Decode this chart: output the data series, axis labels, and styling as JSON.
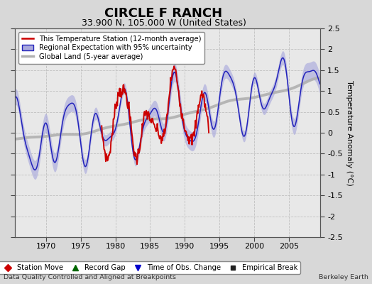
{
  "title": "CIRCLE F RANCH",
  "subtitle": "33.900 N, 105.000 W (United States)",
  "ylabel": "Temperature Anomaly (°C)",
  "xlabel_bottom_left": "Data Quality Controlled and Aligned at Breakpoints",
  "xlabel_bottom_right": "Berkeley Earth",
  "ylim": [
    -2.5,
    2.5
  ],
  "xlim": [
    1965.5,
    2009.5
  ],
  "xticks": [
    1970,
    1975,
    1980,
    1985,
    1990,
    1995,
    2000,
    2005
  ],
  "yticks": [
    -2.5,
    -2,
    -1.5,
    -1,
    -0.5,
    0,
    0.5,
    1,
    1.5,
    2,
    2.5
  ],
  "bg_color": "#d8d8d8",
  "plot_bg_color": "#e8e8e8",
  "legend_line1": "This Temperature Station (12-month average)",
  "legend_line2": "Regional Expectation with 95% uncertainty",
  "legend_line3": "Global Land (5-year average)",
  "legend_marker1": "Station Move",
  "legend_marker2": "Record Gap",
  "legend_marker3": "Time of Obs. Change",
  "legend_marker4": "Empirical Break",
  "station_color": "#cc0000",
  "regional_color": "#2222bb",
  "regional_fill_color": "#aaaadd",
  "global_color": "#b0b0b0",
  "title_fontsize": 13,
  "subtitle_fontsize": 9,
  "tick_fontsize": 8,
  "label_fontsize": 8,
  "station_x_start": 1978.0,
  "station_x_end": 1993.5
}
